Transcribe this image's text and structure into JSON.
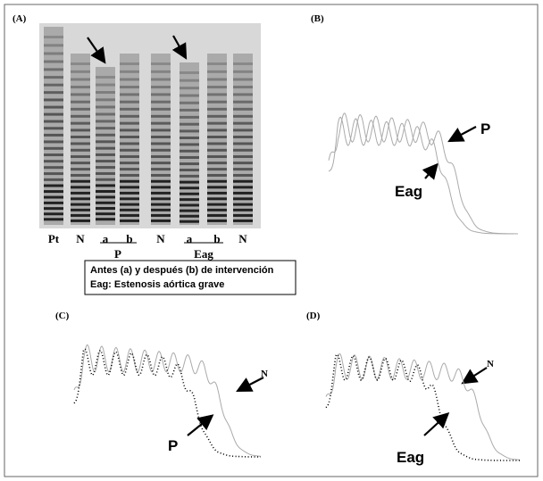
{
  "panels": {
    "a": {
      "label": "(A)",
      "lanes": [
        "Pt",
        "N",
        "a",
        "b",
        "N",
        "a",
        "b",
        "N"
      ],
      "groups": [
        "P",
        "Eag"
      ],
      "legend": [
        "Antes  (a) y después  (b) de intervención",
        "Eag: Estenosis aórtica  grave"
      ]
    },
    "b": {
      "label": "(B)",
      "annotations": [
        "P",
        "Eag"
      ]
    },
    "c": {
      "label": "(C)",
      "annotations": [
        "N",
        "P"
      ]
    },
    "d": {
      "label": "(D)",
      "annotations": [
        "N",
        "Eag"
      ]
    }
  }
}
